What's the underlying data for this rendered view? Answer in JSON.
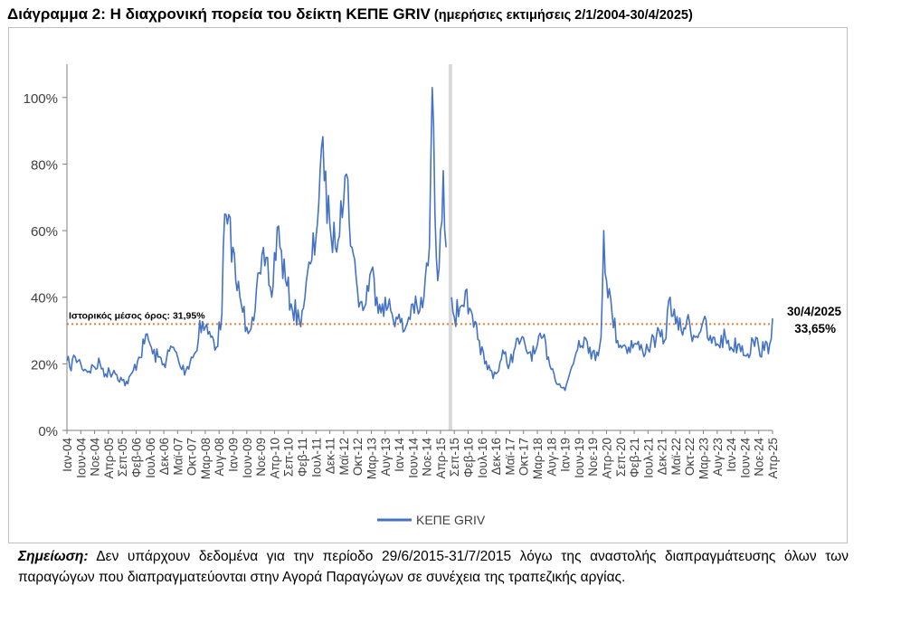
{
  "title": {
    "main": "Διάγραμμα 2: Η διαχρονική πορεία του δείκτη ΚΕΠΕ GRIV",
    "sub": " (ημερήσιες εκτιμήσεις 2/1/2004-30/4/2025)"
  },
  "note": {
    "label": "Σημείωση:",
    "text": " Δεν υπάρχουν δεδομένα για την περίοδο 29/6/2015-31/7/2015 λόγω της αναστολής διαπραγμάτευσης όλων των παραγώγων που διαπραγματεύονται στην Αγορά Παραγώγων σε συνέχεια της τραπεζικής αργίας."
  },
  "colors": {
    "series": "#4472c4",
    "average": "#ed7d31",
    "gap": "#d9d9d9",
    "axis": "#7f7f7f"
  },
  "chart_data": {
    "type": "line",
    "y_unit": "%",
    "ylim": [
      0,
      110
    ],
    "y_ticks": [
      0,
      20,
      40,
      60,
      80,
      100
    ],
    "y_tick_labels": [
      "0%",
      "20%",
      "40%",
      "60%",
      "80%",
      "100%"
    ],
    "x_range": [
      "2004-01",
      "2025-04"
    ],
    "x_tick_labels": [
      "Ιαν-04",
      "Ιουν-04",
      "Νοε-04",
      "Απρ-05",
      "Σεπ-05",
      "Φεβ-06",
      "Ιουλ-06",
      "Δεκ-06",
      "Μαϊ-07",
      "Οκτ-07",
      "Μαρ-08",
      "Αυγ-08",
      "Ιαν-09",
      "Ιουν-09",
      "Νοε-09",
      "Απρ-10",
      "Σεπ-10",
      "Φεβ-11",
      "Ιουλ-11",
      "Δεκ-11",
      "Μαϊ-12",
      "Οκτ-12",
      "Μαρ-13",
      "Αυγ-13",
      "Ιαν-14",
      "Ιουν-14",
      "Νοε-14",
      "Απρ-15",
      "Σεπ-15",
      "Φεβ-16",
      "Ιουλ-16",
      "Δεκ-16",
      "Μαϊ-17",
      "Οκτ-17",
      "Μαρ-18",
      "Αυγ-18",
      "Ιαν-19",
      "Ιουν-19",
      "Νοε-19",
      "Απρ-20",
      "Σεπ-20",
      "Φεβ-21",
      "Ιουλ-21",
      "Δεκ-21",
      "Μαϊ-22",
      "Οκτ-22",
      "Μαρ-23",
      "Αυγ-23",
      "Ιαν-24",
      "Ιουν-24",
      "Νοε-24",
      "Απρ-25"
    ],
    "gap_period": [
      "2015-06-29",
      "2015-07-31"
    ],
    "average": {
      "value": 31.95,
      "label": "Ιστορικός μέσος όρος: 31,95%"
    },
    "last_point": {
      "date_label": "30/4/2025",
      "value_label": "33,65%"
    },
    "legend": "bottom-center",
    "grid": false,
    "series": [
      {
        "name": "ΚΕΠΕ GRIV",
        "points": [
          [
            "2004-01",
            21
          ],
          [
            "2004-02",
            19
          ],
          [
            "2004-04",
            22
          ],
          [
            "2004-06",
            20
          ],
          [
            "2004-08",
            18
          ],
          [
            "2004-11",
            19
          ],
          [
            "2005-01",
            20
          ],
          [
            "2005-03",
            17
          ],
          [
            "2005-06",
            18
          ],
          [
            "2005-09",
            15
          ],
          [
            "2005-11",
            14
          ],
          [
            "2006-01",
            18
          ],
          [
            "2006-03",
            22
          ],
          [
            "2006-05",
            26
          ],
          [
            "2006-06",
            29
          ],
          [
            "2006-08",
            23
          ],
          [
            "2006-10",
            22
          ],
          [
            "2006-12",
            20
          ],
          [
            "2007-03",
            25
          ],
          [
            "2007-05",
            22
          ],
          [
            "2007-06",
            19
          ],
          [
            "2007-08",
            18
          ],
          [
            "2007-10",
            22
          ],
          [
            "2007-12",
            24
          ],
          [
            "2008-01",
            33
          ],
          [
            "2008-03",
            31
          ],
          [
            "2008-05",
            28
          ],
          [
            "2008-07",
            25
          ],
          [
            "2008-09",
            35
          ],
          [
            "2008-10",
            65
          ],
          [
            "2008-11",
            62
          ],
          [
            "2009-01",
            55
          ],
          [
            "2009-02",
            45
          ],
          [
            "2009-04",
            38
          ],
          [
            "2009-06",
            31
          ],
          [
            "2009-08",
            34
          ],
          [
            "2009-11",
            47
          ],
          [
            "2010-01",
            52
          ],
          [
            "2010-03",
            40
          ],
          [
            "2010-05",
            61
          ],
          [
            "2010-06",
            55
          ],
          [
            "2010-08",
            45
          ],
          [
            "2010-10",
            38
          ],
          [
            "2011-01",
            33
          ],
          [
            "2011-03",
            40
          ],
          [
            "2011-05",
            50
          ],
          [
            "2011-07",
            58
          ],
          [
            "2011-09",
            85
          ],
          [
            "2011-10",
            75
          ],
          [
            "2011-12",
            62
          ],
          [
            "2012-02",
            55
          ],
          [
            "2012-04",
            69
          ],
          [
            "2012-06",
            77
          ],
          [
            "2012-08",
            55
          ],
          [
            "2012-10",
            42
          ],
          [
            "2012-12",
            36
          ],
          [
            "2013-03",
            48
          ],
          [
            "2013-05",
            40
          ],
          [
            "2013-07",
            38
          ],
          [
            "2013-09",
            37
          ],
          [
            "2013-12",
            34
          ],
          [
            "2014-03",
            30
          ],
          [
            "2014-06",
            38
          ],
          [
            "2014-08",
            35
          ],
          [
            "2014-10",
            40
          ],
          [
            "2014-12",
            55
          ],
          [
            "2015-01",
            103
          ],
          [
            "2015-02",
            65
          ],
          [
            "2015-03",
            45
          ],
          [
            "2015-04",
            60
          ],
          [
            "2015-05",
            78
          ],
          [
            "2015-06",
            55
          ],
          null,
          [
            "2015-08",
            40
          ],
          [
            "2015-09",
            34
          ],
          [
            "2015-11",
            37
          ],
          [
            "2016-01",
            42
          ],
          [
            "2016-02",
            35
          ],
          [
            "2016-04",
            31
          ],
          [
            "2016-06",
            27
          ],
          [
            "2016-08",
            20
          ],
          [
            "2016-10",
            18
          ],
          [
            "2016-12",
            17
          ],
          [
            "2017-03",
            23
          ],
          [
            "2017-05",
            20
          ],
          [
            "2017-07",
            25
          ],
          [
            "2017-09",
            27
          ],
          [
            "2017-11",
            24
          ],
          [
            "2018-02",
            23
          ],
          [
            "2018-05",
            28
          ],
          [
            "2018-07",
            22
          ],
          [
            "2018-09",
            17
          ],
          [
            "2018-11",
            14
          ],
          [
            "2019-01",
            12
          ],
          [
            "2019-03",
            18
          ],
          [
            "2019-06",
            27
          ],
          [
            "2019-08",
            28
          ],
          [
            "2019-10",
            25
          ],
          [
            "2019-12",
            21
          ],
          [
            "2020-02",
            28
          ],
          [
            "2020-03",
            60
          ],
          [
            "2020-04",
            45
          ],
          [
            "2020-06",
            35
          ],
          [
            "2020-08",
            27
          ],
          [
            "2020-11",
            25
          ],
          [
            "2021-02",
            26
          ],
          [
            "2021-05",
            24
          ],
          [
            "2021-08",
            26
          ],
          [
            "2021-10",
            28
          ],
          [
            "2022-01",
            27
          ],
          [
            "2022-03",
            40
          ],
          [
            "2022-05",
            32
          ],
          [
            "2022-07",
            30
          ],
          [
            "2022-09",
            33
          ],
          [
            "2022-12",
            28
          ],
          [
            "2023-03",
            33
          ],
          [
            "2023-05",
            27
          ],
          [
            "2023-08",
            26
          ],
          [
            "2023-11",
            28
          ],
          [
            "2024-01",
            25
          ],
          [
            "2024-04",
            26
          ],
          [
            "2024-07",
            23
          ],
          [
            "2024-09",
            27
          ],
          [
            "2024-11",
            25
          ],
          [
            "2025-01",
            24
          ],
          [
            "2025-03",
            26
          ],
          [
            "2025-04",
            33.65
          ]
        ]
      }
    ]
  }
}
